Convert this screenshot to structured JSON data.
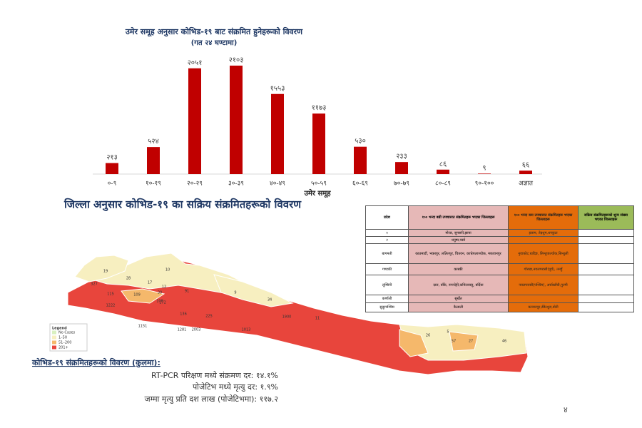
{
  "chart_data": {
    "type": "bar",
    "title": "उमेर समूह अनुसार कोभिड-१९ बाट संक्रमित हुनेहरूको विवरण",
    "subtitle": "(गत २४ घण्टामा)",
    "x_label": "उमेर समूह",
    "categories": [
      "०-९",
      "१०-१९",
      "२०-२९",
      "३०-३९",
      "४०-४९",
      "५०-५९",
      "६०-६९",
      "७०-७९",
      "८०-८९",
      "९०-१००",
      "अज्ञात"
    ],
    "values": [
      213,
      524,
      2051,
      2103,
      1553,
      1173,
      530,
      233,
      86,
      9,
      66
    ],
    "value_labels": [
      "२१३",
      "५२४",
      "२०५१",
      "२१०३",
      "१५५३",
      "११७३",
      "५३०",
      "२३३",
      "८६",
      "९",
      "६६"
    ],
    "color": "#c00000"
  },
  "section_title": "जिल्ला अनुसार कोभिड-१९ का सक्रिय संक्रमितहरूको विवरण",
  "table": {
    "header": [
      "प्रदेश",
      "१०० भन्दा बढी उपचाररत संक्रमितहरू भएका जिल्लाहरू",
      "१०० भन्दा कम उपचाररत संक्रमितहरू भएका जिल्लाहरू",
      "सक्रिय संक्रमितहरूको शून्य संख्या भएका जिल्लाहरू"
    ],
    "rows": [
      [
        "१",
        "मोरङ, सुनसरी,झापा",
        "इलाम, तेह्रथुम,धनकुटा",
        null
      ],
      [
        "२",
        "धनुषा,पर्सा",
        null,
        null
      ],
      [
        "बागमती",
        "काठमाडौं, भक्तपुर, ललितपुर, चितवन, काभ्रेपलाञ्चोक, मकवानपुर",
        "नुवाकोट,धादिङ, सिन्धुपाल्चोक,सिन्धुली",
        null
      ],
      [
        "गण्डकी",
        "कास्की",
        "गोरखा,नवलपरासी(पूर्व), तनहुँ",
        null
      ],
      [
        "लुम्बिनी",
        "दाङ, बाँके, रुपन्देही,कपिलवस्तु, बर्दिया",
        "नवलपरासी(पश्चिम), अर्घाखाँची,गुल्मी",
        null
      ],
      [
        "कर्णाली",
        "सुर्खेत",
        null,
        null
      ],
      [
        "सुदूरपश्चिम",
        "कैलाली",
        "कञ्चनपुर,डँडेल्धुरा,डोटी",
        null
      ]
    ]
  },
  "map": {
    "legend_title": "Legend",
    "legend": [
      {
        "label": "No Cases",
        "color": "#d9f0c0"
      },
      {
        "label": "1–50",
        "color": "#f7efc0"
      },
      {
        "label": "51–200",
        "color": "#f5b86b"
      },
      {
        "label": "201+",
        "color": "#e8453c"
      }
    ],
    "labels": [
      "19",
      "28",
      "10",
      "17",
      "12",
      "91",
      "30",
      "100",
      "109",
      "172",
      "327",
      "115",
      "1222",
      "136",
      "225",
      "1281",
      "1151",
      "2003",
      "1013",
      "1900",
      "11",
      "34",
      "9",
      "5",
      "26",
      "27",
      "57",
      "46"
    ]
  },
  "summary": {
    "heading": "कोभिड-१९ संक्रमितहरूको विवरण (कुलमा):",
    "lines": [
      "RT-PCR परिक्षण मध्ये संक्रमण दर: १४.१%",
      "पोजेटिभ मध्ये मृत्यु दर: १.९%",
      "जम्मा मृत्यु प्रति दश लाख (पोजेटिभमा): ११७.२"
    ]
  },
  "page_number": "४"
}
